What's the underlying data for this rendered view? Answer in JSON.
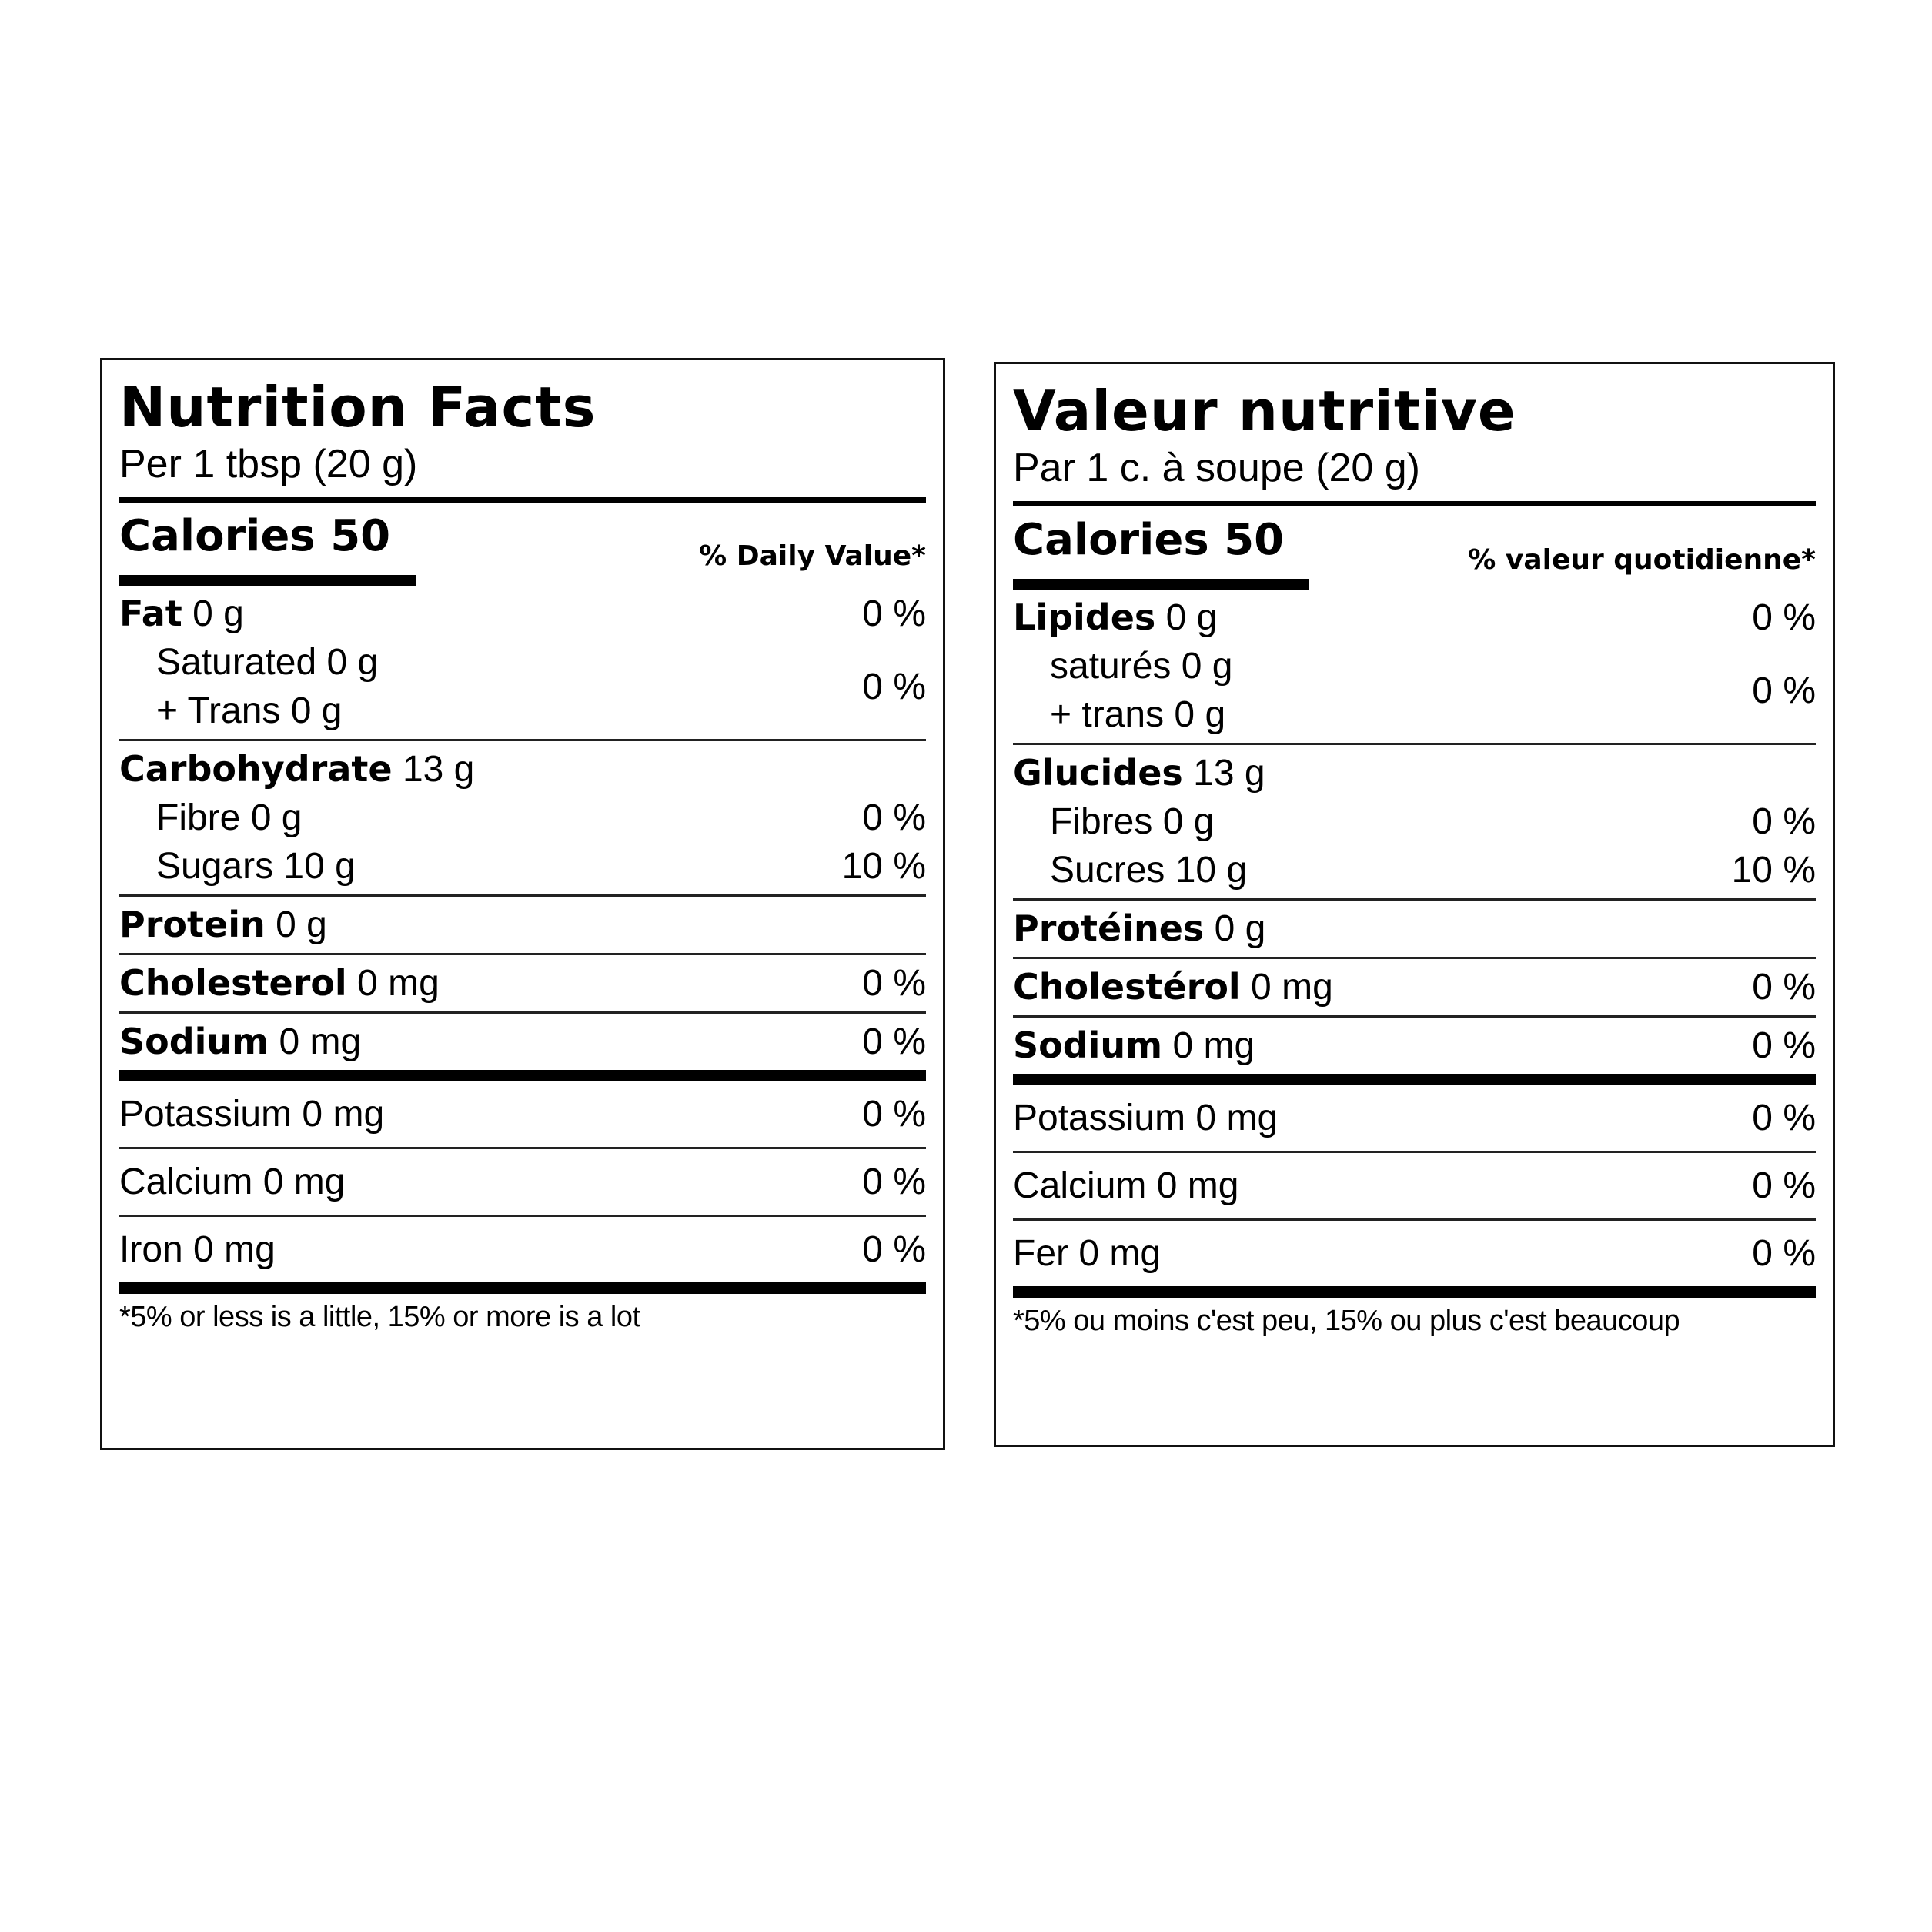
{
  "labels": [
    {
      "title": "Nutrition Facts",
      "serving": "Per 1 tbsp (20 g)",
      "calories": {
        "label": "Calories",
        "value": "50"
      },
      "dv_header": "% Daily Value*",
      "nutrients": [
        {
          "name": "Fat",
          "amount": "0 g",
          "dv": "0 %",
          "group": {
            "lines": [
              "Saturated 0 g",
              "+ Trans 0 g"
            ],
            "dv": "0 %"
          }
        },
        {
          "name": "Carbohydrate",
          "amount": "13 g",
          "subs": [
            {
              "text": "Fibre 0 g",
              "dv": "0 %"
            },
            {
              "text": "Sugars 10 g",
              "dv": "10 %"
            }
          ]
        },
        {
          "name": "Protein",
          "amount": "0 g"
        },
        {
          "name": "Cholesterol",
          "amount": "0 mg",
          "dv": "0 %"
        },
        {
          "name": "Sodium",
          "amount": "0 mg",
          "dv": "0 %"
        }
      ],
      "minerals": [
        {
          "text": "Potassium 0 mg",
          "dv": "0 %"
        },
        {
          "text": "Calcium 0 mg",
          "dv": "0 %"
        },
        {
          "text": "Iron 0 mg",
          "dv": "0 %"
        }
      ],
      "footnote": "*5% or less is a little, 15% or more is a lot"
    },
    {
      "title": "Valeur nutritive",
      "serving": "Par 1 c. à soupe (20 g)",
      "calories": {
        "label": "Calories",
        "value": "50"
      },
      "dv_header": "% valeur quotidienne*",
      "nutrients": [
        {
          "name": "Lipides",
          "amount": "0 g",
          "dv": "0 %",
          "group": {
            "lines": [
              "saturés 0 g",
              "+ trans 0 g"
            ],
            "dv": "0 %"
          }
        },
        {
          "name": "Glucides",
          "amount": "13 g",
          "subs": [
            {
              "text": "Fibres 0 g",
              "dv": "0 %"
            },
            {
              "text": "Sucres 10 g",
              "dv": "10 %"
            }
          ]
        },
        {
          "name": "Protéines",
          "amount": "0 g"
        },
        {
          "name": "Cholestérol",
          "amount": "0 mg",
          "dv": "0 %"
        },
        {
          "name": "Sodium",
          "amount": "0 mg",
          "dv": "0 %"
        }
      ],
      "minerals": [
        {
          "text": "Potassium 0 mg",
          "dv": "0 %"
        },
        {
          "text": "Calcium 0 mg",
          "dv": "0 %"
        },
        {
          "text": "Fer 0 mg",
          "dv": "0 %"
        }
      ],
      "footnote": "*5% ou moins c'est peu, 15% ou plus c'est beaucoup"
    }
  ]
}
